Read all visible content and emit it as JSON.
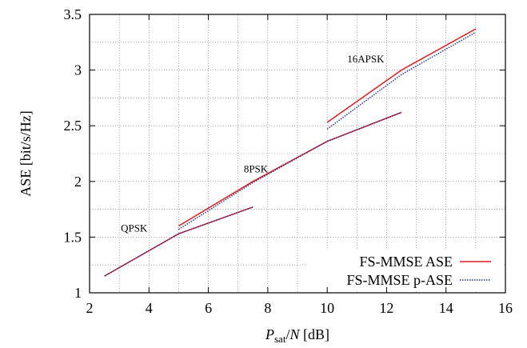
{
  "chart_data": {
    "type": "line",
    "xlabel_parts": [
      "P",
      "sat",
      "/",
      "N",
      " [dB]"
    ],
    "ylabel": "ASE [bit/s/Hz]",
    "xlim": [
      2,
      16
    ],
    "ylim": [
      1,
      3.5
    ],
    "xticks": [
      2,
      4,
      6,
      8,
      10,
      12,
      14,
      16
    ],
    "yticks": [
      1,
      1.5,
      2,
      2.5,
      3,
      3.5
    ],
    "ytick_labels": [
      "1",
      "1.5",
      "2",
      "2.5",
      "3",
      "3.5"
    ],
    "grid": true,
    "legend_position": "bottom-right",
    "annotations": [
      {
        "text": "QPSK",
        "x": 3.5,
        "y": 1.55
      },
      {
        "text": "8PSK",
        "x": 7.6,
        "y": 2.08
      },
      {
        "text": "16APSK",
        "x": 11.3,
        "y": 3.07
      }
    ],
    "series": [
      {
        "name": "FS-MMSE ASE",
        "color": "#e41a1c",
        "dash": "solid",
        "segments": [
          [
            [
              2.5,
              1.15
            ],
            [
              5.0,
              1.53
            ],
            [
              7.5,
              1.77
            ]
          ],
          [
            [
              5.0,
              1.6
            ],
            [
              7.5,
              2.0
            ],
            [
              10.0,
              2.36
            ],
            [
              12.5,
              2.62
            ]
          ],
          [
            [
              10.0,
              2.53
            ],
            [
              12.5,
              3.0
            ],
            [
              15.0,
              3.37
            ]
          ]
        ]
      },
      {
        "name": "FS-MMSE p-ASE",
        "color": "#1f2f8f",
        "dash": "dotted",
        "segments": [
          [
            [
              2.5,
              1.15
            ],
            [
              5.0,
              1.53
            ],
            [
              7.5,
              1.77
            ]
          ],
          [
            [
              5.0,
              1.57
            ],
            [
              7.5,
              1.99
            ],
            [
              10.0,
              2.36
            ],
            [
              12.5,
              2.62
            ]
          ],
          [
            [
              10.0,
              2.47
            ],
            [
              12.5,
              2.96
            ],
            [
              15.0,
              3.34
            ]
          ]
        ]
      }
    ]
  }
}
